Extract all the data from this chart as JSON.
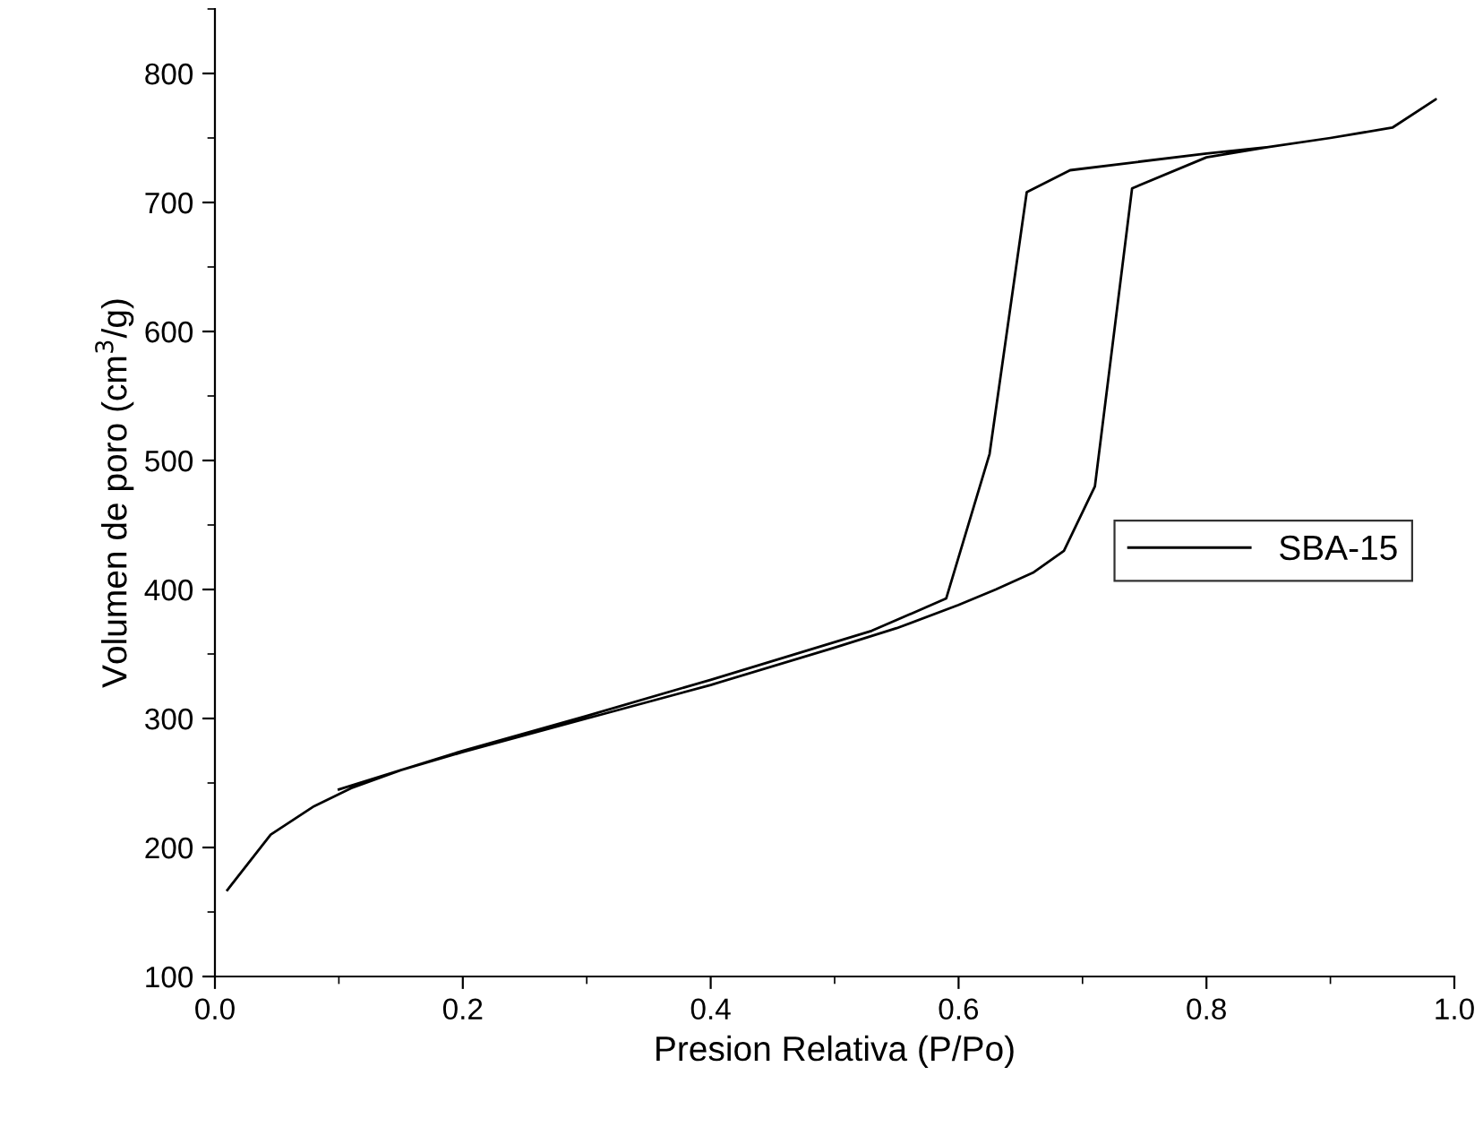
{
  "chart_data": {
    "type": "line",
    "xlabel": "Presion Relativa (P/Po)",
    "ylabel": "Volumen de poro (cm$^{3}$/g)",
    "xlim": [
      0,
      1.0
    ],
    "ylim": [
      100,
      850
    ],
    "xticks": [
      {
        "value": 0,
        "label": "0.0"
      },
      0.2,
      0.4,
      0.6,
      0.8,
      {
        "value": 1,
        "label": "1.0"
      }
    ],
    "yticks": [
      100,
      200,
      300,
      400,
      500,
      600,
      700,
      800
    ],
    "grid": false,
    "legend": "right",
    "marker": "none",
    "line_style": "solid",
    "series": [
      {
        "name": "SBA-15",
        "color": "#000000",
        "x": [
          0.01,
          0.045,
          0.08,
          0.11,
          0.15,
          0.2,
          0.3,
          0.4,
          0.5,
          0.55,
          0.6,
          0.63,
          0.66,
          0.685,
          0.71,
          0.74,
          0.8,
          0.85,
          0.9,
          0.95,
          0.985,
          0.95,
          0.9,
          0.85,
          0.8,
          0.69,
          0.655,
          0.625,
          0.59,
          0.53,
          0.4,
          0.3,
          0.2,
          0.1
        ],
        "values": [
          167,
          210,
          232,
          246,
          260,
          274,
          300,
          326,
          355,
          370,
          388,
          400,
          413,
          430,
          480,
          711,
          735,
          743,
          750,
          758,
          780,
          758,
          750,
          743,
          738,
          725,
          708,
          505,
          393,
          368,
          330,
          302,
          275,
          245
        ]
      }
    ]
  }
}
